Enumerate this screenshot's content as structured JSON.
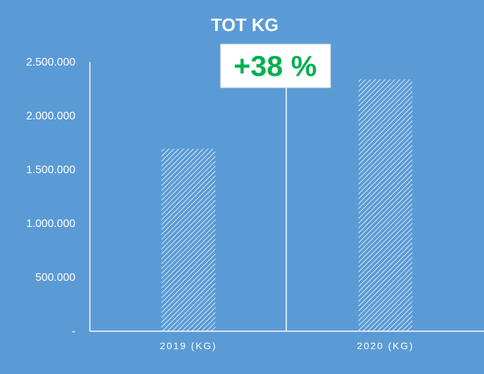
{
  "chart_data": {
    "type": "bar",
    "title": "TOT KG",
    "categories": [
      "2019 (KG)",
      "2020 (KG)"
    ],
    "values": [
      1695000,
      2340000
    ],
    "ylim": [
      0,
      2500000
    ],
    "yticks": [
      0,
      500000,
      1000000,
      1500000,
      2000000,
      2500000
    ],
    "ytick_labels": [
      "-",
      "500.000",
      "1.000.000",
      "1.500.000",
      "2.000.000",
      "2.500.000"
    ],
    "grid": false,
    "legend": "none",
    "bar_fill": "white diagonal hatch",
    "annotation": {
      "text": "+38 %",
      "color": "#00b050"
    },
    "colors": {
      "background": "#5b9bd5",
      "axis": "#ffffff",
      "hatch": "#ffffff"
    }
  }
}
